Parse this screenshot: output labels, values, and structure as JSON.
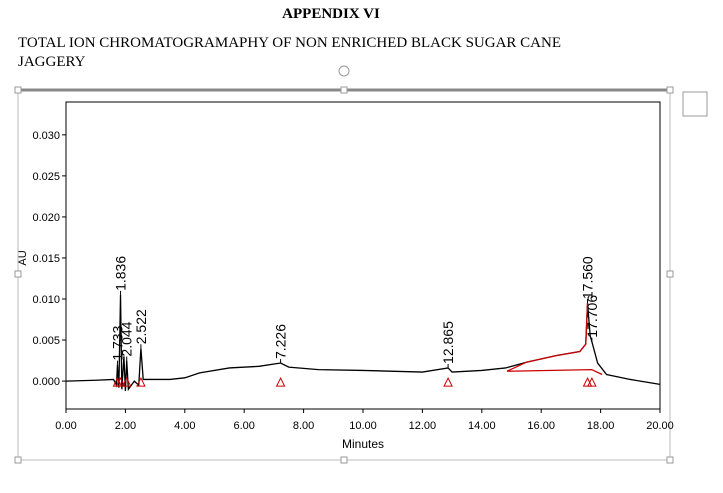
{
  "header": {
    "title": "APPENDIX VI",
    "subtitle_lines": [
      "TOTAL ION CHROMATOGRAMAPHY OF NON  ENRICHED BLACK SUGAR CANE",
      "JAGGERY"
    ]
  },
  "chart_data": {
    "type": "line",
    "x_label": "Minutes",
    "y_label": "AU",
    "xlim": [
      0,
      20
    ],
    "ylim": [
      -0.0034,
      0.034
    ],
    "xticks": [
      {
        "value": 0,
        "label": "0.00"
      },
      {
        "value": 2,
        "label": "2.00"
      },
      {
        "value": 4,
        "label": "4.00"
      },
      {
        "value": 6,
        "label": "6.00"
      },
      {
        "value": 8,
        "label": "8.00"
      },
      {
        "value": 10,
        "label": "10.00"
      },
      {
        "value": 12,
        "label": "12.00"
      },
      {
        "value": 14,
        "label": "14.00"
      },
      {
        "value": 16,
        "label": "16.00"
      },
      {
        "value": 18,
        "label": "18.00"
      },
      {
        "value": 20,
        "label": "20.00"
      }
    ],
    "yticks": [
      {
        "value": 0,
        "label": "0.000"
      },
      {
        "value": 0.005,
        "label": "0.005"
      },
      {
        "value": 0.01,
        "label": "0.010"
      },
      {
        "value": 0.015,
        "label": "0.015"
      },
      {
        "value": 0.02,
        "label": "0.020"
      },
      {
        "value": 0.025,
        "label": "0.025"
      },
      {
        "value": 0.03,
        "label": "0.030"
      }
    ],
    "series": [
      {
        "color": "#000000",
        "x": [
          0,
          1,
          1.6,
          1.7,
          1.733,
          1.78,
          1.836,
          1.88,
          1.95,
          2,
          2.044,
          2.1,
          2.3,
          2.45,
          2.522,
          2.6,
          3.5,
          4,
          4.5,
          5.5,
          6.5,
          7.226,
          7.5,
          8.5,
          10,
          12,
          12.865,
          13,
          14,
          14.8,
          15.5,
          16.5,
          17.3,
          17.5,
          17.56,
          17.65,
          17.706,
          17.9,
          18.2,
          19,
          20
        ],
        "values": [
          0,
          0.0001,
          0.0002,
          -0.0005,
          0.002,
          -0.0008,
          0.0105,
          -0.001,
          0.003,
          -0.0012,
          0.0025,
          -0.001,
          0,
          -0.0005,
          0.004,
          0.0002,
          0.0002,
          0.0004,
          0.001,
          0.0016,
          0.0018,
          0.0022,
          0.0017,
          0.0014,
          0.0013,
          0.0011,
          0.0016,
          0.0011,
          0.0013,
          0.0016,
          0.0023,
          0.0031,
          0.0036,
          0.0045,
          0.0095,
          0.0055,
          0.0048,
          0.0022,
          0.0008,
          0.0002,
          -0.0004
        ]
      },
      {
        "color": "#cc0000",
        "x": [
          14.85,
          15.5,
          16.5,
          17.3,
          17.5,
          17.56
        ],
        "values": [
          0.0012,
          0.0023,
          0.0031,
          0.0036,
          0.0045,
          0.0095
        ]
      },
      {
        "color": "#cc0000",
        "x": [
          14.85,
          17.7,
          18.05
        ],
        "values": [
          0.0012,
          0.0014,
          0.0008
        ]
      }
    ],
    "annotations": [
      {
        "x": 1.733,
        "y": 0.002,
        "label": "1.733"
      },
      {
        "x": 1.836,
        "y": 0.0105,
        "label": "1.836"
      },
      {
        "x": 2.044,
        "y": 0.0025,
        "label": "2.044"
      },
      {
        "x": 2.522,
        "y": 0.004,
        "label": "2.522"
      },
      {
        "x": 7.226,
        "y": 0.0022,
        "label": "7.226"
      },
      {
        "x": 12.865,
        "y": 0.0016,
        "label": "12.865"
      },
      {
        "x": 17.56,
        "y": 0.0095,
        "label": "17.560"
      },
      {
        "x": 17.706,
        "y": 0.0048,
        "label": "17.706"
      }
    ]
  }
}
